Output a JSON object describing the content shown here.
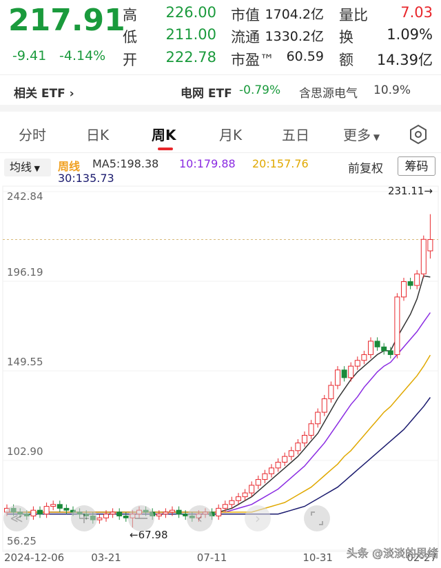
{
  "quote": {
    "price": "217.91",
    "change": "-9.41",
    "change_pct": "-4.14%",
    "stats": [
      {
        "label": "高",
        "value": "226.00"
      },
      {
        "label": "低",
        "value": "211.00"
      },
      {
        "label": "开",
        "value": "222.78"
      },
      {
        "label": "市值",
        "value": "1704.2亿"
      },
      {
        "label": "流通",
        "value": "1330.2亿"
      },
      {
        "label": "市盈™",
        "value": "60.59"
      },
      {
        "label": "量比",
        "value": "7.03"
      },
      {
        "label": "换",
        "value": "1.09%"
      },
      {
        "label": "额",
        "value": "14.39亿"
      }
    ]
  },
  "etf": {
    "related": "相关 ETF",
    "name": "电网 ETF",
    "change": "-0.79%",
    "holding": "含思源电气",
    "weight": "10.9%"
  },
  "tabs": [
    "分时",
    "日K",
    "周K",
    "月K",
    "五日",
    "更多"
  ],
  "indicator": {
    "selector": "均线",
    "adjust": "前复权",
    "chips": "筹码"
  },
  "watermark": "头条 @淡淡的思绪",
  "chart_data": {
    "type": "candlestick",
    "period": "周线",
    "categories": [
      "2024-12-06",
      null,
      null,
      null,
      null,
      null,
      null,
      null,
      null,
      null,
      null,
      null,
      null,
      null,
      null,
      "03-21",
      null,
      null,
      null,
      null,
      null,
      null,
      null,
      null,
      null,
      null,
      null,
      null,
      null,
      null,
      null,
      "07-11",
      null,
      null,
      null,
      null,
      null,
      null,
      null,
      null,
      null,
      null,
      null,
      null,
      null,
      null,
      null,
      "10-31",
      null,
      null,
      null,
      null,
      null,
      null,
      null,
      null,
      null,
      null,
      null,
      null,
      null,
      null,
      null,
      null,
      "02-27"
    ],
    "open": [
      76,
      78,
      76,
      75,
      74,
      77,
      75,
      79,
      80,
      78,
      77,
      76,
      75,
      74,
      72,
      73,
      75,
      76,
      74,
      73,
      75,
      77,
      76,
      74,
      75,
      76,
      77,
      75,
      74,
      73,
      75,
      76,
      74,
      78,
      80,
      82,
      84,
      86,
      90,
      93,
      96,
      99,
      102,
      105,
      108,
      112,
      116,
      122,
      128,
      135,
      142,
      150,
      146,
      152,
      155,
      158,
      165,
      162,
      160,
      158,
      188,
      196,
      194,
      200,
      212
    ],
    "high": [
      80,
      80,
      78,
      77,
      79,
      79,
      81,
      82,
      82,
      80,
      79,
      78,
      77,
      76,
      75,
      77,
      78,
      78,
      76,
      77,
      79,
      79,
      78,
      77,
      78,
      79,
      79,
      77,
      76,
      77,
      78,
      78,
      80,
      82,
      84,
      86,
      88,
      92,
      95,
      98,
      101,
      104,
      107,
      110,
      114,
      118,
      124,
      130,
      137,
      144,
      152,
      152,
      154,
      157,
      160,
      167,
      167,
      164,
      162,
      190,
      198,
      198,
      202,
      220,
      231.11
    ],
    "low": [
      74,
      74,
      73,
      72,
      72,
      73,
      73,
      77,
      76,
      75,
      74,
      73,
      72,
      70,
      70,
      71,
      73,
      72,
      71,
      67.98,
      73,
      74,
      72,
      72,
      73,
      74,
      73,
      72,
      71,
      71,
      73,
      72,
      72,
      76,
      78,
      80,
      82,
      84,
      88,
      91,
      94,
      97,
      100,
      103,
      106,
      110,
      114,
      120,
      126,
      133,
      140,
      144,
      144,
      150,
      153,
      156,
      160,
      158,
      156,
      156,
      186,
      192,
      192,
      198,
      208
    ],
    "close": [
      78,
      76,
      75,
      74,
      77,
      75,
      79,
      80,
      78,
      77,
      76,
      75,
      74,
      72,
      73,
      75,
      76,
      74,
      73,
      75,
      77,
      76,
      74,
      75,
      76,
      77,
      75,
      74,
      73,
      75,
      76,
      74,
      78,
      80,
      82,
      84,
      86,
      90,
      93,
      96,
      99,
      102,
      105,
      108,
      112,
      116,
      122,
      128,
      135,
      142,
      150,
      146,
      152,
      155,
      158,
      165,
      162,
      160,
      158,
      188,
      196,
      194,
      200,
      218,
      217.91
    ],
    "up_color": "#e8262b",
    "down_color": "#1a8a3a",
    "series": [
      {
        "name": "MA5:198.38",
        "color": "#333333",
        "values": [
          76,
          76,
          76,
          76,
          76,
          76,
          76,
          76,
          76,
          76,
          76,
          76,
          76,
          76,
          76,
          76,
          76,
          76,
          76,
          76,
          76,
          76,
          76,
          76,
          76,
          76,
          76,
          76,
          76,
          76,
          76,
          76,
          76,
          77,
          78,
          80,
          82,
          84,
          87,
          90,
          93,
          96,
          99,
          102,
          105,
          109,
          113,
          117,
          123,
          129,
          135,
          140,
          145,
          149,
          152,
          155,
          158,
          160,
          160,
          167,
          173,
          179,
          187,
          199,
          198.38
        ]
      },
      {
        "name": "10:179.88",
        "color": "#8a2be2",
        "values": [
          76,
          76,
          76,
          76,
          76,
          76,
          76,
          76,
          76,
          76,
          76,
          76,
          76,
          76,
          76,
          76,
          76,
          76,
          76,
          76,
          76,
          76,
          76,
          76,
          76,
          76,
          76,
          76,
          76,
          76,
          76,
          76,
          76,
          76,
          77,
          78,
          79,
          80,
          82,
          84,
          86,
          88,
          91,
          94,
          97,
          100,
          104,
          108,
          112,
          117,
          122,
          127,
          132,
          136,
          141,
          145,
          149,
          152,
          154,
          158,
          162,
          166,
          170,
          175,
          179.88
        ]
      },
      {
        "name": "20:157.76",
        "color": "#e0a800",
        "values": [
          76,
          76,
          76,
          76,
          76,
          76,
          76,
          76,
          76,
          76,
          76,
          76,
          76,
          76,
          76,
          76,
          76,
          76,
          76,
          76,
          76,
          76,
          76,
          76,
          76,
          76,
          76,
          76,
          76,
          76,
          76,
          76,
          76,
          76,
          76,
          76,
          76,
          76,
          77,
          78,
          79,
          80,
          81,
          83,
          85,
          87,
          89,
          92,
          95,
          98,
          101,
          105,
          108,
          112,
          116,
          120,
          124,
          128,
          131,
          135,
          139,
          143,
          147,
          152,
          157.76
        ]
      },
      {
        "name": "30:135.73",
        "color": "#1a1a6e",
        "values": [
          75,
          75,
          75,
          75,
          75,
          75,
          75,
          75,
          75,
          75,
          75,
          75,
          75,
          75,
          75,
          75,
          75,
          75,
          75,
          75,
          75,
          75,
          75,
          75,
          75,
          75,
          75,
          75,
          75,
          75,
          75,
          75,
          75,
          75,
          75,
          75,
          75,
          75,
          75,
          75,
          75,
          75,
          76,
          77,
          78,
          79,
          81,
          83,
          85,
          87,
          89,
          92,
          95,
          98,
          101,
          104,
          107,
          110,
          113,
          116,
          119,
          123,
          127,
          131,
          135.73
        ]
      }
    ],
    "ylim": [
      56.25,
      242.84
    ],
    "yticks": [
      56.25,
      102.9,
      149.55,
      196.19,
      242.84
    ],
    "ytick_labels": [
      "56.25",
      "102.90",
      "149.55",
      "196.19",
      "242.84"
    ],
    "annotations": [
      "231.11→",
      "←67.98"
    ]
  }
}
